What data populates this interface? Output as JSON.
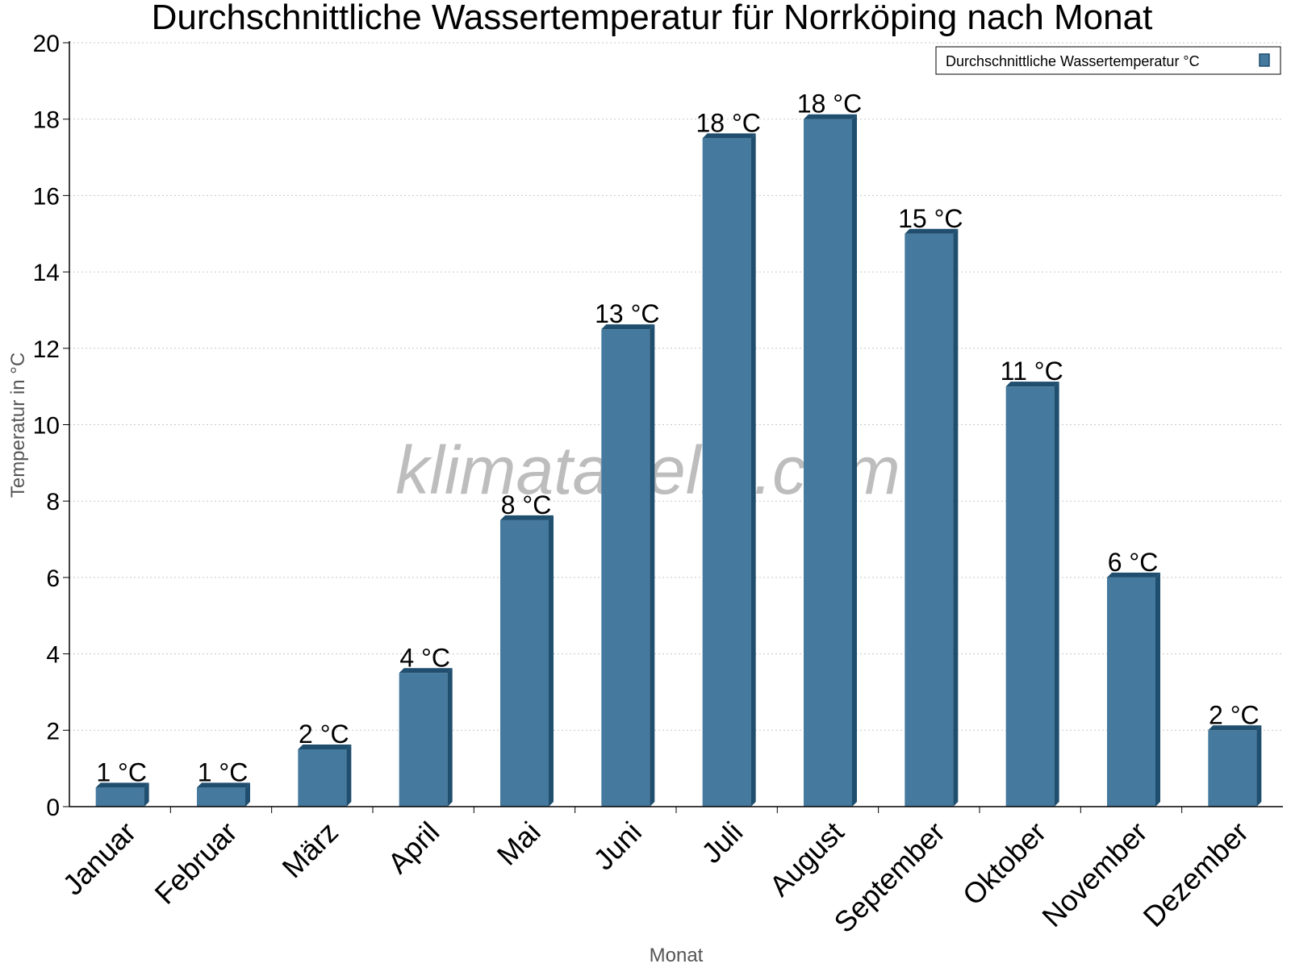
{
  "chart_data": {
    "type": "bar",
    "title": "Durchschnittliche Wassertemperatur für Norrköping nach Monat",
    "xlabel": "Monat",
    "ylabel": "Temperatur in °C",
    "categories": [
      "Januar",
      "Februar",
      "März",
      "April",
      "Mai",
      "Juni",
      "Juli",
      "August",
      "September",
      "Oktober",
      "November",
      "Dezember"
    ],
    "series": [
      {
        "name": "Durchschnittliche Wassertemperatur °C",
        "values": [
          0.5,
          0.5,
          1.5,
          3.5,
          7.5,
          12.5,
          17.5,
          18,
          15,
          11,
          6,
          2
        ],
        "data_labels": [
          "1 °C",
          "1 °C",
          "2 °C",
          "4 °C",
          "8 °C",
          "13 °C",
          "18 °C",
          "18 °C",
          "15 °C",
          "11 °C",
          "6 °C",
          "2 °C"
        ],
        "color": "#45799d",
        "edge_color": "#1f4e6e"
      }
    ],
    "ylim": [
      0,
      20
    ],
    "yticks": [
      0,
      2,
      4,
      6,
      8,
      10,
      12,
      14,
      16,
      18,
      20
    ],
    "grid": true,
    "legend_position": "top-right",
    "watermark": "klimatabelle.com"
  }
}
